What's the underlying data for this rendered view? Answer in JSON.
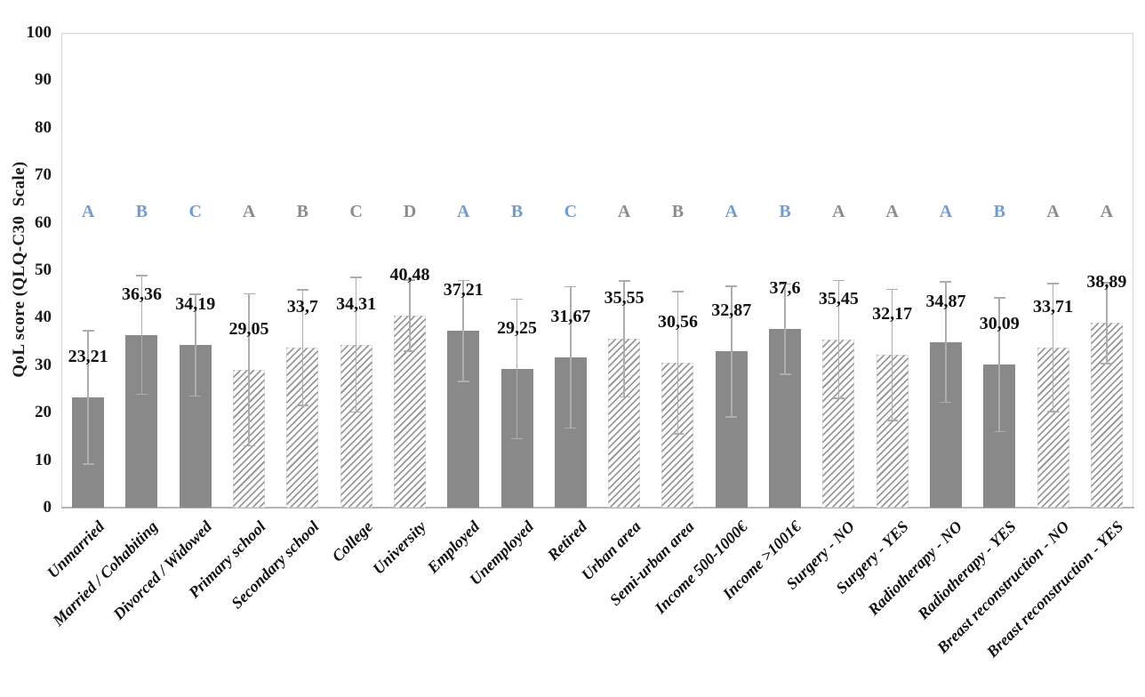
{
  "figure": {
    "background": "#ffffff"
  },
  "colors": {
    "bar_solid": "#898989",
    "hatch_line": "#9a9a9a",
    "error_bar": "#adadaf",
    "plot_border": "#d4d5d8",
    "axis_line": "#b3b4b7",
    "text": "#111111",
    "letter_blue": "#739dce",
    "letter_gray": "#8c8c8c"
  },
  "chart_data": {
    "type": "bar",
    "title": "",
    "xlabel": "",
    "ylabel": "QoL score (QLQ-C30  Scale)",
    "ylim": [
      0,
      100
    ],
    "ytick_step": 10,
    "ytick_labels": [
      "0",
      "10",
      "20",
      "30",
      "40",
      "50",
      "60",
      "70",
      "80",
      "90",
      "100"
    ],
    "grid": false,
    "legend": null,
    "decimal_separator": ",",
    "letters_row_y_value": 62.4,
    "points": [
      {
        "category": "Unmarried",
        "value": 23.21,
        "label": "23,21",
        "error": 14.0,
        "fill": "solid",
        "letter": "A",
        "letter_color": "blue"
      },
      {
        "category": "Married / Cohabiting",
        "value": 36.36,
        "label": "36,36",
        "error": 12.5,
        "fill": "solid",
        "letter": "B",
        "letter_color": "blue"
      },
      {
        "category": "Divorced / Widowed",
        "value": 34.19,
        "label": "34,19",
        "error": 10.7,
        "fill": "solid",
        "letter": "C",
        "letter_color": "blue"
      },
      {
        "category": "Primary school",
        "value": 29.05,
        "label": "29,05",
        "error": 16.0,
        "fill": "hatched",
        "letter": "A",
        "letter_color": "gray"
      },
      {
        "category": "Secondary school",
        "value": 33.7,
        "label": "33,7",
        "error": 12.2,
        "fill": "hatched",
        "letter": "B",
        "letter_color": "gray"
      },
      {
        "category": "College",
        "value": 34.31,
        "label": "34,31",
        "error": 14.2,
        "fill": "hatched",
        "letter": "C",
        "letter_color": "gray"
      },
      {
        "category": "University",
        "value": 40.48,
        "label": "40,48",
        "error": 7.5,
        "fill": "hatched",
        "letter": "D",
        "letter_color": "gray"
      },
      {
        "category": "Employed",
        "value": 37.21,
        "label": "37,21",
        "error": 10.6,
        "fill": "solid",
        "letter": "A",
        "letter_color": "blue"
      },
      {
        "category": "Unemployed",
        "value": 29.25,
        "label": "29,25",
        "error": 14.7,
        "fill": "solid",
        "letter": "B",
        "letter_color": "blue"
      },
      {
        "category": "Retired",
        "value": 31.67,
        "label": "31,67",
        "error": 14.9,
        "fill": "solid",
        "letter": "C",
        "letter_color": "blue"
      },
      {
        "category": "Urban area",
        "value": 35.55,
        "label": "35,55",
        "error": 12.2,
        "fill": "hatched",
        "letter": "A",
        "letter_color": "gray"
      },
      {
        "category": "Semi-urban area",
        "value": 30.56,
        "label": "30,56",
        "error": 15.0,
        "fill": "hatched",
        "letter": "B",
        "letter_color": "gray"
      },
      {
        "category": "Income 500-1000€",
        "value": 32.87,
        "label": "32,87",
        "error": 13.8,
        "fill": "solid",
        "letter": "A",
        "letter_color": "blue"
      },
      {
        "category": "Income >1001€",
        "value": 37.6,
        "label": "37,6",
        "error": 9.5,
        "fill": "solid",
        "letter": "B",
        "letter_color": "blue"
      },
      {
        "category": "Surgery - NO",
        "value": 35.45,
        "label": "35,45",
        "error": 12.4,
        "fill": "hatched",
        "letter": "A",
        "letter_color": "gray"
      },
      {
        "category": "Surgery - YES",
        "value": 32.17,
        "label": "32,17",
        "error": 13.8,
        "fill": "hatched",
        "letter": "A",
        "letter_color": "gray"
      },
      {
        "category": "Radiotherapy - NO",
        "value": 34.87,
        "label": "34,87",
        "error": 12.7,
        "fill": "solid",
        "letter": "A",
        "letter_color": "blue"
      },
      {
        "category": "Radiotherapy - YES",
        "value": 30.09,
        "label": "30,09",
        "error": 14.1,
        "fill": "solid",
        "letter": "B",
        "letter_color": "blue"
      },
      {
        "category": "Breast reconstruction - NO",
        "value": 33.71,
        "label": "33,71",
        "error": 13.5,
        "fill": "hatched",
        "letter": "A",
        "letter_color": "gray"
      },
      {
        "category": "Breast reconstruction - YES",
        "value": 38.89,
        "label": "38,89",
        "error": 8.5,
        "fill": "hatched",
        "letter": "A",
        "letter_color": "gray"
      }
    ]
  }
}
